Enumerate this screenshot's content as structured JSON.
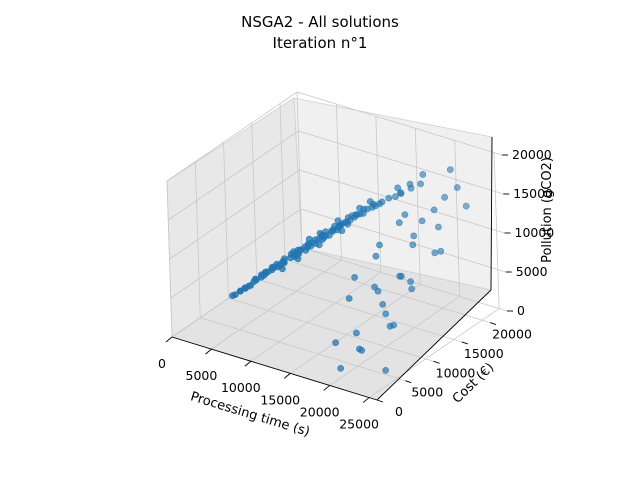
{
  "chart_data": {
    "type": "scatter",
    "projection": "3d",
    "title": "NSGA2 - All solutions",
    "subtitle": "Iteration n°1",
    "xlabel": "Processing time (s)",
    "ylabel": "Cost (€)",
    "zlabel": "Pollution (gCO2)",
    "xlim": [
      0,
      26000
    ],
    "ylim": [
      0,
      23000
    ],
    "zlim": [
      0,
      20000
    ],
    "xticks": [
      "0",
      "5000",
      "10000",
      "15000",
      "20000",
      "25000"
    ],
    "yticks": [
      "0",
      "5000",
      "10000",
      "15000",
      "20000"
    ],
    "zticks": [
      "0",
      "5000",
      "10000",
      "15000",
      "20000"
    ],
    "marker_color": "#1f77b4",
    "grid": true,
    "series": [
      {
        "points": [
          [
            9800,
            9600,
            9500
          ],
          [
            10500,
            10600,
            10100
          ],
          [
            11200,
            11400,
            10900
          ],
          [
            9000,
            8800,
            8600
          ],
          [
            12600,
            12200,
            11600
          ],
          [
            11800,
            12600,
            11200
          ],
          [
            10200,
            10300,
            9800
          ],
          [
            8600,
            8200,
            8300
          ],
          [
            13200,
            13000,
            12400
          ],
          [
            7600,
            7400,
            7300
          ],
          [
            14500,
            14200,
            13300
          ],
          [
            9400,
            9900,
            9100
          ],
          [
            12000,
            11600,
            11000
          ],
          [
            10900,
            11200,
            10400
          ],
          [
            8200,
            8500,
            8000
          ],
          [
            13800,
            13600,
            12900
          ],
          [
            7000,
            6800,
            6700
          ],
          [
            11500,
            11000,
            10600
          ],
          [
            9600,
            9200,
            9000
          ],
          [
            12800,
            13200,
            12100
          ],
          [
            15200,
            14800,
            14000
          ],
          [
            6400,
            6300,
            6200
          ],
          [
            10000,
            10800,
            10300
          ],
          [
            8800,
            9200,
            8800
          ],
          [
            14000,
            13800,
            13200
          ],
          [
            6000,
            5800,
            5600
          ],
          [
            11000,
            10500,
            10200
          ],
          [
            13500,
            12800,
            12300
          ],
          [
            9200,
            9500,
            8900
          ],
          [
            7800,
            8000,
            7800
          ],
          [
            16000,
            15500,
            14600
          ],
          [
            5600,
            5400,
            5300
          ],
          [
            12300,
            11800,
            11500
          ],
          [
            10700,
            10100,
            10000
          ],
          [
            8400,
            7800,
            7900
          ],
          [
            14800,
            14500,
            13800
          ],
          [
            7200,
            7300,
            7000
          ],
          [
            11900,
            12100,
            11300
          ],
          [
            9900,
            10200,
            9600
          ],
          [
            13000,
            13600,
            12600
          ],
          [
            5200,
            5100,
            5000
          ],
          [
            10300,
            9700,
            9500
          ],
          [
            12500,
            12900,
            11900
          ],
          [
            8000,
            8300,
            7600
          ],
          [
            15500,
            15000,
            14200
          ],
          [
            6800,
            6600,
            6500
          ],
          [
            11300,
            11900,
            11100
          ],
          [
            9500,
            8900,
            8800
          ],
          [
            13600,
            13100,
            12700
          ],
          [
            7400,
            7700,
            7400
          ],
          [
            17000,
            16500,
            15100
          ],
          [
            4800,
            4700,
            4600
          ],
          [
            12100,
            12400,
            11800
          ],
          [
            10600,
            11000,
            10300
          ],
          [
            8700,
            8100,
            8200
          ],
          [
            14200,
            14700,
            13500
          ],
          [
            6600,
            6900,
            6600
          ],
          [
            11600,
            11200,
            10800
          ],
          [
            9300,
            9700,
            9200
          ],
          [
            13300,
            13900,
            12800
          ],
          [
            4600,
            4500,
            4500
          ],
          [
            10100,
            10500,
            9900
          ],
          [
            12700,
            12400,
            12000
          ],
          [
            8100,
            7700,
            7700
          ],
          [
            15800,
            15300,
            14400
          ],
          [
            6200,
            6100,
            6000
          ],
          [
            11100,
            11500,
            10700
          ],
          [
            9700,
            9300,
            9100
          ],
          [
            14300,
            13900,
            13300
          ],
          [
            7100,
            7000,
            6900
          ],
          [
            12400,
            12700,
            11700
          ],
          [
            10400,
            9900,
            9800
          ],
          [
            8300,
            8700,
            8300
          ],
          [
            13700,
            14000,
            13000
          ],
          [
            5800,
            5700,
            5500
          ],
          [
            11700,
            11400,
            11000
          ],
          [
            9100,
            9400,
            8700
          ],
          [
            12900,
            12500,
            12200
          ],
          [
            7700,
            7600,
            7500
          ],
          [
            15000,
            15300,
            14100
          ],
          [
            16500,
            16000,
            15000
          ],
          [
            17500,
            16800,
            15500
          ],
          [
            18200,
            17600,
            16000
          ],
          [
            16800,
            17200,
            15800
          ],
          [
            19000,
            18200,
            16500
          ],
          [
            17800,
            18000,
            16200
          ],
          [
            5000,
            5300,
            4800
          ],
          [
            5400,
            5600,
            5200
          ],
          [
            6100,
            6500,
            6100
          ],
          [
            6900,
            7200,
            6900
          ],
          [
            7500,
            7900,
            7400
          ],
          [
            8900,
            9500,
            9000
          ],
          [
            10800,
            11600,
            10900
          ],
          [
            12200,
            12900,
            12300
          ],
          [
            13900,
            14400,
            13700
          ],
          [
            14700,
            15200,
            14400
          ],
          [
            8500,
            8000,
            7400
          ],
          [
            9800,
            9000,
            8600
          ],
          [
            11400,
            10600,
            10100
          ],
          [
            13100,
            12300,
            11600
          ],
          [
            24000,
            6000,
            6000
          ],
          [
            21000,
            4000,
            3000
          ],
          [
            25000,
            3000,
            2000
          ],
          [
            19500,
            9000,
            8000
          ],
          [
            22500,
            12000,
            14000
          ],
          [
            18500,
            16000,
            13500
          ],
          [
            20500,
            14500,
            11000
          ],
          [
            23500,
            10000,
            8500
          ],
          [
            17200,
            12500,
            9500
          ],
          [
            21800,
            18500,
            15500
          ],
          [
            24500,
            8500,
            10500
          ],
          [
            20000,
            2000,
            1200
          ],
          [
            15800,
            19000,
            14000
          ],
          [
            23000,
            15000,
            16000
          ],
          [
            19200,
            6000,
            3500
          ],
          [
            22000,
            17000,
            12500
          ],
          [
            16200,
            9000,
            5500
          ],
          [
            24800,
            13500,
            12000
          ],
          [
            18000,
            20000,
            16500
          ],
          [
            21500,
            11000,
            9000
          ],
          [
            17600,
            4500,
            2500
          ],
          [
            23800,
            19500,
            14500
          ],
          [
            19800,
            13000,
            7500
          ],
          [
            22800,
            7000,
            5000
          ],
          [
            16600,
            14000,
            10000
          ],
          [
            24200,
            17500,
            18000
          ],
          [
            20800,
            21000,
            17500
          ],
          [
            18800,
            10500,
            6500
          ],
          [
            22400,
            2500,
            4000
          ],
          [
            21200,
            8000,
            6800
          ],
          [
            25500,
            11500,
            13000
          ],
          [
            17000,
            17000,
            11500
          ],
          [
            23400,
            5500,
            7500
          ],
          [
            20300,
            16500,
            13000
          ],
          [
            15500,
            11000,
            7000
          ]
        ]
      }
    ]
  }
}
